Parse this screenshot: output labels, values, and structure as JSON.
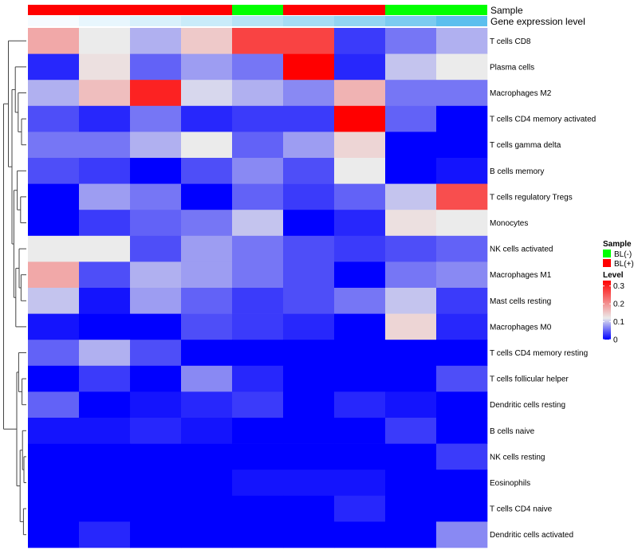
{
  "chart_data": {
    "type": "heatmap",
    "annotation_labels": [
      "Sample",
      "Gene expression level"
    ],
    "columns": 9,
    "sample_groups": [
      "BL(+)",
      "BL(+)",
      "BL(+)",
      "BL(+)",
      "BL(-)",
      "BL(+)",
      "BL(+)",
      "BL(-)",
      "BL(-)"
    ],
    "gene_expression_level_colors": [
      "#f6fbff",
      "#e8f6fd",
      "#d8f0fb",
      "#c9ebf9",
      "#b6e3f6",
      "#a5dcf4",
      "#92d4f2",
      "#7bcbf0",
      "#5bbfee"
    ],
    "rows": [
      "T cells CD8",
      "Plasma cells",
      "Macrophages M2",
      "T cells CD4 memory activated",
      "T cells gamma delta",
      "B cells memory",
      "T cells regulatory  Tregs",
      "Monocytes",
      "NK cells activated",
      "Macrophages M1",
      "Mast cells resting",
      "Macrophages M0",
      "T cells CD4 memory resting",
      "T cells follicular helper",
      "Dendritic cells resting",
      "B cells naive",
      "NK cells resting",
      "Eosinophils",
      "T cells CD4 naive",
      "Dendritic cells activated"
    ],
    "values": [
      [
        0.18,
        0.12,
        0.09,
        0.15,
        0.27,
        0.27,
        0.03,
        0.06,
        0.09
      ],
      [
        0.02,
        0.13,
        0.05,
        0.08,
        0.06,
        0.33,
        0.02,
        0.1,
        0.12
      ],
      [
        0.09,
        0.16,
        0.3,
        0.11,
        0.09,
        0.07,
        0.17,
        0.06,
        0.06
      ],
      [
        0.04,
        0.02,
        0.06,
        0.02,
        0.03,
        0.03,
        0.33,
        0.05,
        0.0
      ],
      [
        0.06,
        0.06,
        0.09,
        0.12,
        0.05,
        0.08,
        0.14,
        0.0,
        0.0
      ],
      [
        0.04,
        0.03,
        0.0,
        0.04,
        0.07,
        0.04,
        0.12,
        0.0,
        0.01
      ],
      [
        0.0,
        0.08,
        0.06,
        0.0,
        0.05,
        0.03,
        0.05,
        0.1,
        0.26
      ],
      [
        0.0,
        0.03,
        0.05,
        0.06,
        0.1,
        0.0,
        0.02,
        0.13,
        0.12
      ],
      [
        0.12,
        0.12,
        0.04,
        0.08,
        0.06,
        0.04,
        0.03,
        0.04,
        0.05
      ],
      [
        0.18,
        0.04,
        0.09,
        0.08,
        0.06,
        0.04,
        0.0,
        0.06,
        0.07
      ],
      [
        0.1,
        0.01,
        0.08,
        0.05,
        0.03,
        0.04,
        0.06,
        0.1,
        0.03
      ],
      [
        0.01,
        0.0,
        0.0,
        0.04,
        0.03,
        0.02,
        0.0,
        0.14,
        0.02
      ],
      [
        0.05,
        0.09,
        0.04,
        0.0,
        0.0,
        0.0,
        0.0,
        0.0,
        0.0
      ],
      [
        0.0,
        0.03,
        0.0,
        0.07,
        0.02,
        0.0,
        0.0,
        0.0,
        0.04
      ],
      [
        0.05,
        0.0,
        0.01,
        0.02,
        0.03,
        0.0,
        0.02,
        0.01,
        0.0
      ],
      [
        0.01,
        0.01,
        0.02,
        0.01,
        0.0,
        0.0,
        0.0,
        0.03,
        0.0
      ],
      [
        0.0,
        0.0,
        0.0,
        0.0,
        0.0,
        0.0,
        0.0,
        0.0,
        0.03
      ],
      [
        0.0,
        0.0,
        0.0,
        0.0,
        0.01,
        0.01,
        0.01,
        0.0,
        0.0
      ],
      [
        0.0,
        0.0,
        0.0,
        0.0,
        0.0,
        0.0,
        0.02,
        0.0,
        0.0
      ],
      [
        0.0,
        0.02,
        0.0,
        0.0,
        0.0,
        0.0,
        0.0,
        0.0,
        0.07
      ]
    ],
    "color_scale": {
      "min": 0,
      "mid": 0.12,
      "max": 0.33,
      "low_color": "#0000ff",
      "mid_color": "#ebebeb",
      "high_color": "#ff0000"
    },
    "legend": {
      "sample_title": "Sample",
      "sample_items": [
        {
          "label": "BL(-)",
          "color": "#00ff00"
        },
        {
          "label": "BL(+)",
          "color": "#ff0000"
        }
      ],
      "level_title": "Level",
      "level_ticks": [
        {
          "label": "0.3",
          "value": 0.3
        },
        {
          "label": "0.2",
          "value": 0.2
        },
        {
          "label": "0.1",
          "value": 0.1
        },
        {
          "label": "0",
          "value": 0
        }
      ],
      "placement": "right"
    },
    "row_dendrogram": true
  }
}
